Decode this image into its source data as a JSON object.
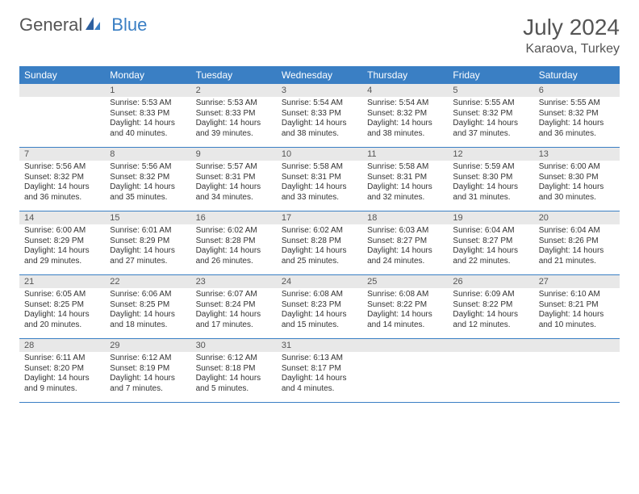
{
  "logo": {
    "text1": "General",
    "text2": "Blue"
  },
  "title": "July 2024",
  "location": "Karaova, Turkey",
  "dayNames": [
    "Sunday",
    "Monday",
    "Tuesday",
    "Wednesday",
    "Thursday",
    "Friday",
    "Saturday"
  ],
  "colors": {
    "headerBlue": "#3a7fc4",
    "dayNumBg": "#e8e8e8",
    "text": "#333333",
    "titleText": "#555555"
  },
  "weeks": [
    [
      {
        "num": "",
        "lines": []
      },
      {
        "num": "1",
        "lines": [
          "Sunrise: 5:53 AM",
          "Sunset: 8:33 PM",
          "Daylight: 14 hours",
          "and 40 minutes."
        ]
      },
      {
        "num": "2",
        "lines": [
          "Sunrise: 5:53 AM",
          "Sunset: 8:33 PM",
          "Daylight: 14 hours",
          "and 39 minutes."
        ]
      },
      {
        "num": "3",
        "lines": [
          "Sunrise: 5:54 AM",
          "Sunset: 8:33 PM",
          "Daylight: 14 hours",
          "and 38 minutes."
        ]
      },
      {
        "num": "4",
        "lines": [
          "Sunrise: 5:54 AM",
          "Sunset: 8:32 PM",
          "Daylight: 14 hours",
          "and 38 minutes."
        ]
      },
      {
        "num": "5",
        "lines": [
          "Sunrise: 5:55 AM",
          "Sunset: 8:32 PM",
          "Daylight: 14 hours",
          "and 37 minutes."
        ]
      },
      {
        "num": "6",
        "lines": [
          "Sunrise: 5:55 AM",
          "Sunset: 8:32 PM",
          "Daylight: 14 hours",
          "and 36 minutes."
        ]
      }
    ],
    [
      {
        "num": "7",
        "lines": [
          "Sunrise: 5:56 AM",
          "Sunset: 8:32 PM",
          "Daylight: 14 hours",
          "and 36 minutes."
        ]
      },
      {
        "num": "8",
        "lines": [
          "Sunrise: 5:56 AM",
          "Sunset: 8:32 PM",
          "Daylight: 14 hours",
          "and 35 minutes."
        ]
      },
      {
        "num": "9",
        "lines": [
          "Sunrise: 5:57 AM",
          "Sunset: 8:31 PM",
          "Daylight: 14 hours",
          "and 34 minutes."
        ]
      },
      {
        "num": "10",
        "lines": [
          "Sunrise: 5:58 AM",
          "Sunset: 8:31 PM",
          "Daylight: 14 hours",
          "and 33 minutes."
        ]
      },
      {
        "num": "11",
        "lines": [
          "Sunrise: 5:58 AM",
          "Sunset: 8:31 PM",
          "Daylight: 14 hours",
          "and 32 minutes."
        ]
      },
      {
        "num": "12",
        "lines": [
          "Sunrise: 5:59 AM",
          "Sunset: 8:30 PM",
          "Daylight: 14 hours",
          "and 31 minutes."
        ]
      },
      {
        "num": "13",
        "lines": [
          "Sunrise: 6:00 AM",
          "Sunset: 8:30 PM",
          "Daylight: 14 hours",
          "and 30 minutes."
        ]
      }
    ],
    [
      {
        "num": "14",
        "lines": [
          "Sunrise: 6:00 AM",
          "Sunset: 8:29 PM",
          "Daylight: 14 hours",
          "and 29 minutes."
        ]
      },
      {
        "num": "15",
        "lines": [
          "Sunrise: 6:01 AM",
          "Sunset: 8:29 PM",
          "Daylight: 14 hours",
          "and 27 minutes."
        ]
      },
      {
        "num": "16",
        "lines": [
          "Sunrise: 6:02 AM",
          "Sunset: 8:28 PM",
          "Daylight: 14 hours",
          "and 26 minutes."
        ]
      },
      {
        "num": "17",
        "lines": [
          "Sunrise: 6:02 AM",
          "Sunset: 8:28 PM",
          "Daylight: 14 hours",
          "and 25 minutes."
        ]
      },
      {
        "num": "18",
        "lines": [
          "Sunrise: 6:03 AM",
          "Sunset: 8:27 PM",
          "Daylight: 14 hours",
          "and 24 minutes."
        ]
      },
      {
        "num": "19",
        "lines": [
          "Sunrise: 6:04 AM",
          "Sunset: 8:27 PM",
          "Daylight: 14 hours",
          "and 22 minutes."
        ]
      },
      {
        "num": "20",
        "lines": [
          "Sunrise: 6:04 AM",
          "Sunset: 8:26 PM",
          "Daylight: 14 hours",
          "and 21 minutes."
        ]
      }
    ],
    [
      {
        "num": "21",
        "lines": [
          "Sunrise: 6:05 AM",
          "Sunset: 8:25 PM",
          "Daylight: 14 hours",
          "and 20 minutes."
        ]
      },
      {
        "num": "22",
        "lines": [
          "Sunrise: 6:06 AM",
          "Sunset: 8:25 PM",
          "Daylight: 14 hours",
          "and 18 minutes."
        ]
      },
      {
        "num": "23",
        "lines": [
          "Sunrise: 6:07 AM",
          "Sunset: 8:24 PM",
          "Daylight: 14 hours",
          "and 17 minutes."
        ]
      },
      {
        "num": "24",
        "lines": [
          "Sunrise: 6:08 AM",
          "Sunset: 8:23 PM",
          "Daylight: 14 hours",
          "and 15 minutes."
        ]
      },
      {
        "num": "25",
        "lines": [
          "Sunrise: 6:08 AM",
          "Sunset: 8:22 PM",
          "Daylight: 14 hours",
          "and 14 minutes."
        ]
      },
      {
        "num": "26",
        "lines": [
          "Sunrise: 6:09 AM",
          "Sunset: 8:22 PM",
          "Daylight: 14 hours",
          "and 12 minutes."
        ]
      },
      {
        "num": "27",
        "lines": [
          "Sunrise: 6:10 AM",
          "Sunset: 8:21 PM",
          "Daylight: 14 hours",
          "and 10 minutes."
        ]
      }
    ],
    [
      {
        "num": "28",
        "lines": [
          "Sunrise: 6:11 AM",
          "Sunset: 8:20 PM",
          "Daylight: 14 hours",
          "and 9 minutes."
        ]
      },
      {
        "num": "29",
        "lines": [
          "Sunrise: 6:12 AM",
          "Sunset: 8:19 PM",
          "Daylight: 14 hours",
          "and 7 minutes."
        ]
      },
      {
        "num": "30",
        "lines": [
          "Sunrise: 6:12 AM",
          "Sunset: 8:18 PM",
          "Daylight: 14 hours",
          "and 5 minutes."
        ]
      },
      {
        "num": "31",
        "lines": [
          "Sunrise: 6:13 AM",
          "Sunset: 8:17 PM",
          "Daylight: 14 hours",
          "and 4 minutes."
        ]
      },
      {
        "num": "",
        "lines": []
      },
      {
        "num": "",
        "lines": []
      },
      {
        "num": "",
        "lines": []
      }
    ]
  ]
}
